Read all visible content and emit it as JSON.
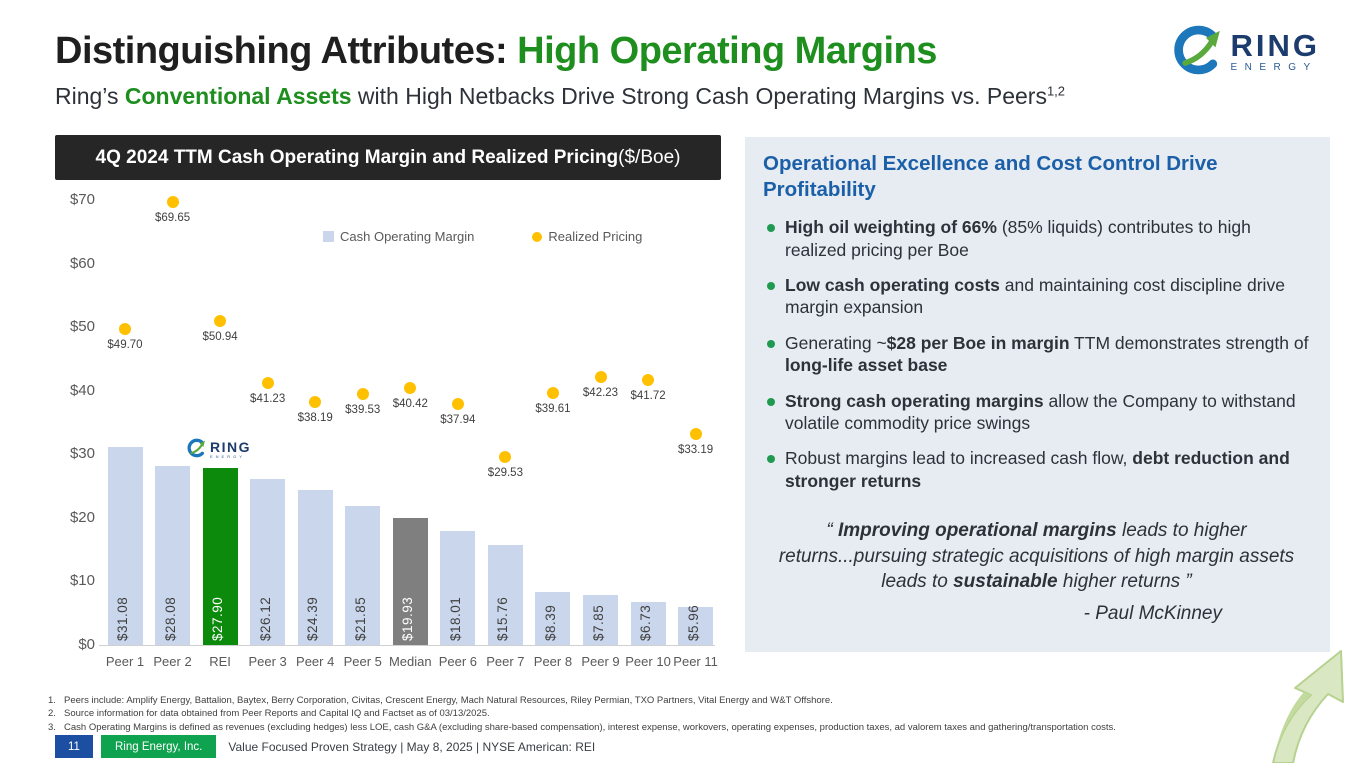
{
  "slide": {
    "title_black": "Distinguishing Attributes: ",
    "title_green": "High Operating Margins",
    "subtitle_segments": [
      {
        "t": "Ring’s "
      },
      {
        "t": "Conventional Assets",
        "b": true,
        "g": true
      },
      {
        "t": " with High Netbacks Drive Strong Cash Operating Margins vs. Peers"
      }
    ],
    "subtitle_sup": "1,2"
  },
  "logo": {
    "word": "RING",
    "sub": "ENERGY"
  },
  "chart_data": {
    "type": "bar",
    "overlay": "scatter",
    "title_bold": "4Q 2024 TTM Cash Operating Margin and Realized Pricing",
    "title_normal": " ($/Boe)",
    "categories": [
      "Peer 1",
      "Peer 2",
      "REI",
      "Peer 3",
      "Peer 4",
      "Peer 5",
      "Median",
      "Peer 6",
      "Peer 7",
      "Peer 8",
      "Peer 9",
      "Peer 10",
      "Peer 11"
    ],
    "series": [
      {
        "name": "Cash Operating Margin",
        "values": [
          31.08,
          28.08,
          27.9,
          26.12,
          24.39,
          21.85,
          19.93,
          18.01,
          15.76,
          8.39,
          7.85,
          6.73,
          5.96
        ]
      },
      {
        "name": "Realized Pricing",
        "values": [
          49.7,
          69.65,
          50.94,
          41.23,
          38.19,
          39.53,
          40.42,
          37.94,
          29.53,
          39.61,
          42.23,
          41.72,
          33.19
        ]
      }
    ],
    "legend": [
      "Cash Operating Margin",
      "Realized Pricing"
    ],
    "ylim": [
      0,
      70
    ],
    "ytick_labels": [
      "$0",
      "$10",
      "$20",
      "$30",
      "$40",
      "$50",
      "$60",
      "$70"
    ],
    "value_prefix": "$",
    "grid": false,
    "legend_position": "top-inside",
    "bar_color": "#c9d6ec",
    "dot_color": "#ffc000",
    "highlight_colors": {
      "REI": "#0b8a0b",
      "Median": "#7f7f7f"
    }
  },
  "panel": {
    "heading": "Operational Excellence and Cost Control Drive Profitability",
    "bullets": [
      [
        {
          "t": "High oil weighting of 66%",
          "b": true
        },
        {
          "t": "  (85% liquids) contributes to high realized pricing per Boe"
        }
      ],
      [
        {
          "t": "Low cash operating costs",
          "b": true
        },
        {
          "t": " and maintaining cost discipline drive margin expansion"
        }
      ],
      [
        {
          "t": "Generating ~"
        },
        {
          "t": "$28 per Boe in margin",
          "b": true
        },
        {
          "t": " TTM demonstrates strength of "
        },
        {
          "t": "long-life asset base",
          "b": true
        }
      ],
      [
        {
          "t": "Strong cash operating margins",
          "b": true
        },
        {
          "t": " allow the Company to withstand volatile commodity price swings"
        }
      ],
      [
        {
          "t": "Robust margins lead to increased cash flow, "
        },
        {
          "t": "debt reduction and stronger returns",
          "b": true
        }
      ]
    ],
    "quote_segments": [
      {
        "t": "“ "
      },
      {
        "t": "Improving operational margins",
        "b": true
      },
      {
        "t": " leads to higher returns...pursuing strategic acquisitions of high margin assets leads to "
      },
      {
        "t": "sustainable",
        "b": true
      },
      {
        "t": " higher returns ”"
      }
    ],
    "attribution": "- Paul McKinney"
  },
  "footnotes": [
    {
      "n": "1.",
      "text": "Peers include: Amplify Energy, Battalion, Baytex, Berry Corporation, Civitas, Crescent Energy, Mach Natural Resources, Riley Permian, TXO Partners, Vital Energy and W&T Offshore."
    },
    {
      "n": "2.",
      "text": "Source information for data obtained from Peer Reports and Capital IQ and Factset as of 03/13/2025."
    },
    {
      "n": "3.",
      "text": "Cash Operating Margins is defined as revenues (excluding hedges) less LOE, cash G&A (excluding share-based compensation), interest expense, workovers, operating expenses, production taxes, ad valorem taxes and gathering/transportation costs."
    }
  ],
  "footer": {
    "page": "11",
    "company": "Ring Energy, Inc.",
    "text": "Value Focused Proven Strategy  | May 8, 2025 |  NYSE American: REI"
  }
}
